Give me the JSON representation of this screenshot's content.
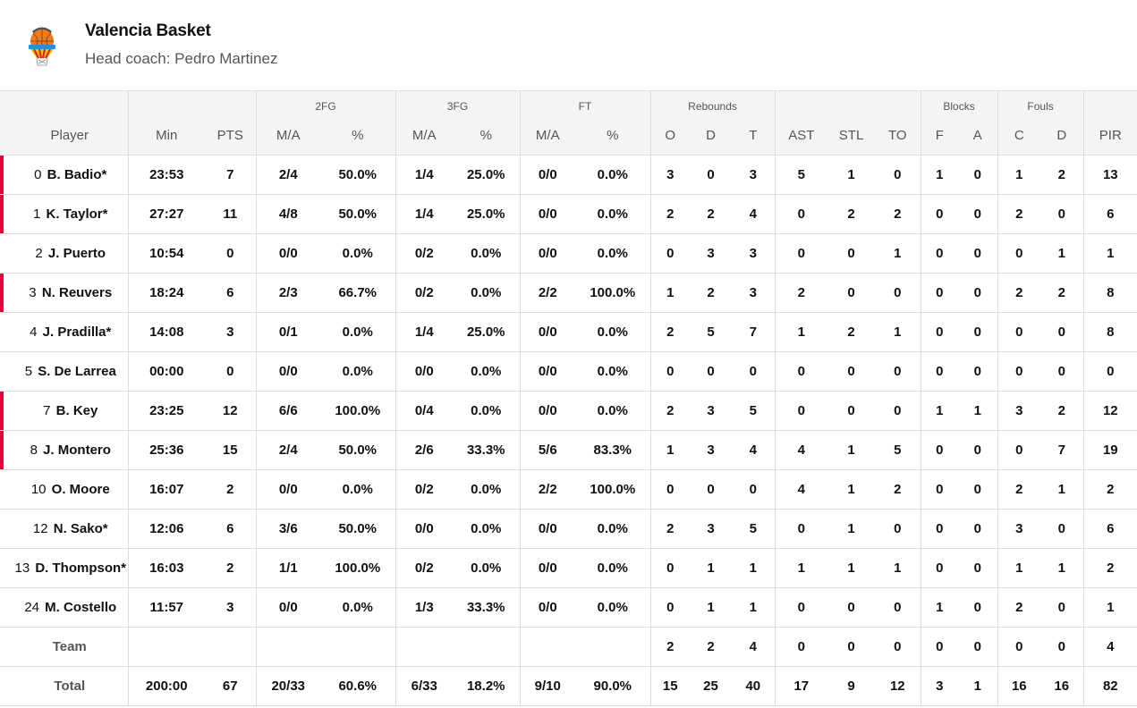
{
  "team": {
    "name": "Valencia Basket",
    "coach_label": "Head coach: Pedro Martinez",
    "logo_icon": "valencia-basket-logo",
    "accent_color": "#e4003b"
  },
  "table": {
    "group_headers": {
      "fg2": "2FG",
      "fg3": "3FG",
      "ft": "FT",
      "rebounds": "Rebounds",
      "blocks": "Blocks",
      "fouls": "Fouls"
    },
    "columns": {
      "player": "Player",
      "min": "Min",
      "pts": "PTS",
      "fg2_ma": "M/A",
      "fg2_pct": "%",
      "fg3_ma": "M/A",
      "fg3_pct": "%",
      "ft_ma": "M/A",
      "ft_pct": "%",
      "reb_o": "O",
      "reb_d": "D",
      "reb_t": "T",
      "ast": "AST",
      "stl": "STL",
      "to": "TO",
      "blk_f": "F",
      "blk_a": "A",
      "foul_c": "C",
      "foul_d": "D",
      "pir": "PIR"
    },
    "rows": [
      {
        "num": "0",
        "name": "B. Badio*",
        "on_court": true,
        "min": "23:53",
        "pts": "7",
        "fg2_ma": "2/4",
        "fg2_pct": "50.0%",
        "fg3_ma": "1/4",
        "fg3_pct": "25.0%",
        "ft_ma": "0/0",
        "ft_pct": "0.0%",
        "reb_o": "3",
        "reb_d": "0",
        "reb_t": "3",
        "ast": "5",
        "stl": "1",
        "to": "0",
        "blk_f": "1",
        "blk_a": "0",
        "foul_c": "1",
        "foul_d": "2",
        "pir": "13"
      },
      {
        "num": "1",
        "name": "K. Taylor*",
        "on_court": true,
        "min": "27:27",
        "pts": "11",
        "fg2_ma": "4/8",
        "fg2_pct": "50.0%",
        "fg3_ma": "1/4",
        "fg3_pct": "25.0%",
        "ft_ma": "0/0",
        "ft_pct": "0.0%",
        "reb_o": "2",
        "reb_d": "2",
        "reb_t": "4",
        "ast": "0",
        "stl": "2",
        "to": "2",
        "blk_f": "0",
        "blk_a": "0",
        "foul_c": "2",
        "foul_d": "0",
        "pir": "6"
      },
      {
        "num": "2",
        "name": "J. Puerto",
        "on_court": false,
        "min": "10:54",
        "pts": "0",
        "fg2_ma": "0/0",
        "fg2_pct": "0.0%",
        "fg3_ma": "0/2",
        "fg3_pct": "0.0%",
        "ft_ma": "0/0",
        "ft_pct": "0.0%",
        "reb_o": "0",
        "reb_d": "3",
        "reb_t": "3",
        "ast": "0",
        "stl": "0",
        "to": "1",
        "blk_f": "0",
        "blk_a": "0",
        "foul_c": "0",
        "foul_d": "1",
        "pir": "1"
      },
      {
        "num": "3",
        "name": "N. Reuvers",
        "on_court": true,
        "min": "18:24",
        "pts": "6",
        "fg2_ma": "2/3",
        "fg2_pct": "66.7%",
        "fg3_ma": "0/2",
        "fg3_pct": "0.0%",
        "ft_ma": "2/2",
        "ft_pct": "100.0%",
        "reb_o": "1",
        "reb_d": "2",
        "reb_t": "3",
        "ast": "2",
        "stl": "0",
        "to": "0",
        "blk_f": "0",
        "blk_a": "0",
        "foul_c": "2",
        "foul_d": "2",
        "pir": "8"
      },
      {
        "num": "4",
        "name": "J. Pradilla*",
        "on_court": false,
        "min": "14:08",
        "pts": "3",
        "fg2_ma": "0/1",
        "fg2_pct": "0.0%",
        "fg3_ma": "1/4",
        "fg3_pct": "25.0%",
        "ft_ma": "0/0",
        "ft_pct": "0.0%",
        "reb_o": "2",
        "reb_d": "5",
        "reb_t": "7",
        "ast": "1",
        "stl": "2",
        "to": "1",
        "blk_f": "0",
        "blk_a": "0",
        "foul_c": "0",
        "foul_d": "0",
        "pir": "8"
      },
      {
        "num": "5",
        "name": "S. De Larrea",
        "on_court": false,
        "min": "00:00",
        "pts": "0",
        "fg2_ma": "0/0",
        "fg2_pct": "0.0%",
        "fg3_ma": "0/0",
        "fg3_pct": "0.0%",
        "ft_ma": "0/0",
        "ft_pct": "0.0%",
        "reb_o": "0",
        "reb_d": "0",
        "reb_t": "0",
        "ast": "0",
        "stl": "0",
        "to": "0",
        "blk_f": "0",
        "blk_a": "0",
        "foul_c": "0",
        "foul_d": "0",
        "pir": "0"
      },
      {
        "num": "7",
        "name": "B. Key",
        "on_court": true,
        "min": "23:25",
        "pts": "12",
        "fg2_ma": "6/6",
        "fg2_pct": "100.0%",
        "fg3_ma": "0/4",
        "fg3_pct": "0.0%",
        "ft_ma": "0/0",
        "ft_pct": "0.0%",
        "reb_o": "2",
        "reb_d": "3",
        "reb_t": "5",
        "ast": "0",
        "stl": "0",
        "to": "0",
        "blk_f": "1",
        "blk_a": "1",
        "foul_c": "3",
        "foul_d": "2",
        "pir": "12"
      },
      {
        "num": "8",
        "name": "J. Montero",
        "on_court": true,
        "min": "25:36",
        "pts": "15",
        "fg2_ma": "2/4",
        "fg2_pct": "50.0%",
        "fg3_ma": "2/6",
        "fg3_pct": "33.3%",
        "ft_ma": "5/6",
        "ft_pct": "83.3%",
        "reb_o": "1",
        "reb_d": "3",
        "reb_t": "4",
        "ast": "4",
        "stl": "1",
        "to": "5",
        "blk_f": "0",
        "blk_a": "0",
        "foul_c": "0",
        "foul_d": "7",
        "pir": "19"
      },
      {
        "num": "10",
        "name": "O. Moore",
        "on_court": false,
        "min": "16:07",
        "pts": "2",
        "fg2_ma": "0/0",
        "fg2_pct": "0.0%",
        "fg3_ma": "0/2",
        "fg3_pct": "0.0%",
        "ft_ma": "2/2",
        "ft_pct": "100.0%",
        "reb_o": "0",
        "reb_d": "0",
        "reb_t": "0",
        "ast": "4",
        "stl": "1",
        "to": "2",
        "blk_f": "0",
        "blk_a": "0",
        "foul_c": "2",
        "foul_d": "1",
        "pir": "2"
      },
      {
        "num": "12",
        "name": "N. Sako*",
        "on_court": false,
        "min": "12:06",
        "pts": "6",
        "fg2_ma": "3/6",
        "fg2_pct": "50.0%",
        "fg3_ma": "0/0",
        "fg3_pct": "0.0%",
        "ft_ma": "0/0",
        "ft_pct": "0.0%",
        "reb_o": "2",
        "reb_d": "3",
        "reb_t": "5",
        "ast": "0",
        "stl": "1",
        "to": "0",
        "blk_f": "0",
        "blk_a": "0",
        "foul_c": "3",
        "foul_d": "0",
        "pir": "6"
      },
      {
        "num": "13",
        "name": "D. Thompson*",
        "on_court": false,
        "min": "16:03",
        "pts": "2",
        "fg2_ma": "1/1",
        "fg2_pct": "100.0%",
        "fg3_ma": "0/2",
        "fg3_pct": "0.0%",
        "ft_ma": "0/0",
        "ft_pct": "0.0%",
        "reb_o": "0",
        "reb_d": "1",
        "reb_t": "1",
        "ast": "1",
        "stl": "1",
        "to": "1",
        "blk_f": "0",
        "blk_a": "0",
        "foul_c": "1",
        "foul_d": "1",
        "pir": "2"
      },
      {
        "num": "24",
        "name": "M. Costello",
        "on_court": false,
        "min": "11:57",
        "pts": "3",
        "fg2_ma": "0/0",
        "fg2_pct": "0.0%",
        "fg3_ma": "1/3",
        "fg3_pct": "33.3%",
        "ft_ma": "0/0",
        "ft_pct": "0.0%",
        "reb_o": "0",
        "reb_d": "1",
        "reb_t": "1",
        "ast": "0",
        "stl": "0",
        "to": "0",
        "blk_f": "1",
        "blk_a": "0",
        "foul_c": "2",
        "foul_d": "0",
        "pir": "1"
      }
    ],
    "team_row": {
      "label": "Team",
      "min": "",
      "pts": "",
      "fg2_ma": "",
      "fg2_pct": "",
      "fg3_ma": "",
      "fg3_pct": "",
      "ft_ma": "",
      "ft_pct": "",
      "reb_o": "2",
      "reb_d": "2",
      "reb_t": "4",
      "ast": "0",
      "stl": "0",
      "to": "0",
      "blk_f": "0",
      "blk_a": "0",
      "foul_c": "0",
      "foul_d": "0",
      "pir": "4"
    },
    "total_row": {
      "label": "Total",
      "min": "200:00",
      "pts": "67",
      "fg2_ma": "20/33",
      "fg2_pct": "60.6%",
      "fg3_ma": "6/33",
      "fg3_pct": "18.2%",
      "ft_ma": "9/10",
      "ft_pct": "90.0%",
      "reb_o": "15",
      "reb_d": "25",
      "reb_t": "40",
      "ast": "17",
      "stl": "9",
      "to": "12",
      "blk_f": "3",
      "blk_a": "1",
      "foul_c": "16",
      "foul_d": "16",
      "pir": "82"
    }
  }
}
